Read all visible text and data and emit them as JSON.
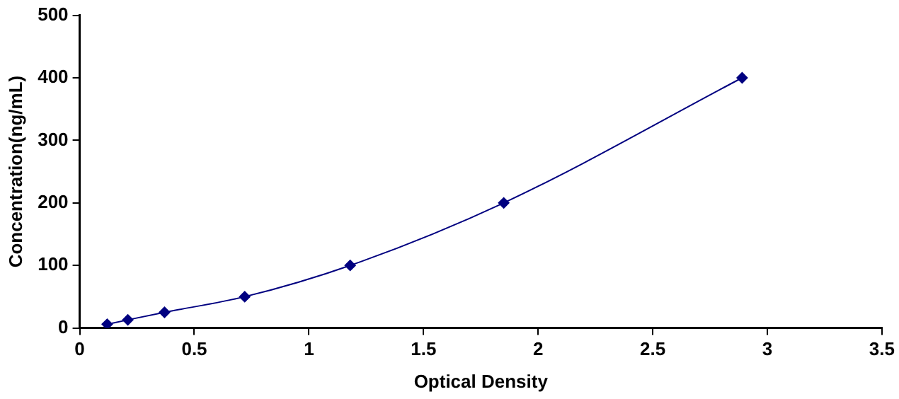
{
  "chart_data": {
    "type": "line",
    "xlabel": "Optical Density",
    "ylabel": "Concentration(ng/mL)",
    "x": [
      0.12,
      0.21,
      0.37,
      0.72,
      1.18,
      1.85,
      2.89
    ],
    "series": [
      {
        "color": "#000080",
        "values": [
          6,
          13,
          25,
          50,
          100,
          200,
          400
        ]
      }
    ],
    "xlim": [
      0,
      3.5
    ],
    "xticks": [
      0,
      0.5,
      1,
      1.5,
      2,
      2.5,
      3,
      3.5
    ],
    "ylim": [
      0,
      500
    ],
    "yticks": [
      0,
      100,
      200,
      300,
      400,
      500
    ],
    "grid": false,
    "legend": false,
    "marker": "diamond",
    "line_style": "solid"
  }
}
